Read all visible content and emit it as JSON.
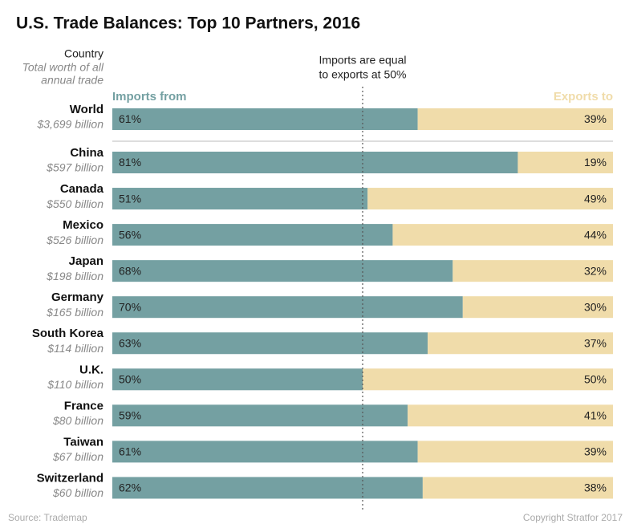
{
  "chart_data": {
    "type": "stacked-bar-horizontal",
    "title": "U.S. Trade Balances: Top 10 Partners, 2016",
    "category_header": "Country",
    "subheader_lines": [
      "Total worth of all",
      "annual trade"
    ],
    "annotation_lines": [
      "Imports are equal",
      "to exports at 50%"
    ],
    "reference_value": 50,
    "categories": [
      "World",
      "China",
      "Canada",
      "Mexico",
      "Japan",
      "Germany",
      "South Korea",
      "U.K.",
      "France",
      "Taiwan",
      "Switzerland"
    ],
    "category_sublabels": [
      "$3,699 billion",
      "$597 billion",
      "$550 billion",
      "$526 billion",
      "$198 billion",
      "$165 billion",
      "$114 billion",
      "$110 billion",
      "$80 billion",
      "$67 billion",
      "$60 billion"
    ],
    "series": [
      {
        "name": "Imports from",
        "color": "#74a0a2",
        "values": [
          61,
          81,
          51,
          56,
          68,
          70,
          63,
          50,
          59,
          61,
          62
        ],
        "value_labels": [
          "61%",
          "81%",
          "51%",
          "56%",
          "68%",
          "70%",
          "63%",
          "50%",
          "59%",
          "61%",
          "62%"
        ]
      },
      {
        "name": "Exports to",
        "color": "#f0dcaa",
        "values": [
          39,
          19,
          49,
          44,
          32,
          30,
          37,
          50,
          41,
          39,
          38
        ],
        "value_labels": [
          "39%",
          "19%",
          "49%",
          "44%",
          "32%",
          "30%",
          "37%",
          "50%",
          "41%",
          "39%",
          "38%"
        ]
      }
    ],
    "xlim": [
      0,
      100
    ],
    "source": "Source: Trademap",
    "copyright": "Copyright Stratfor 2017"
  }
}
